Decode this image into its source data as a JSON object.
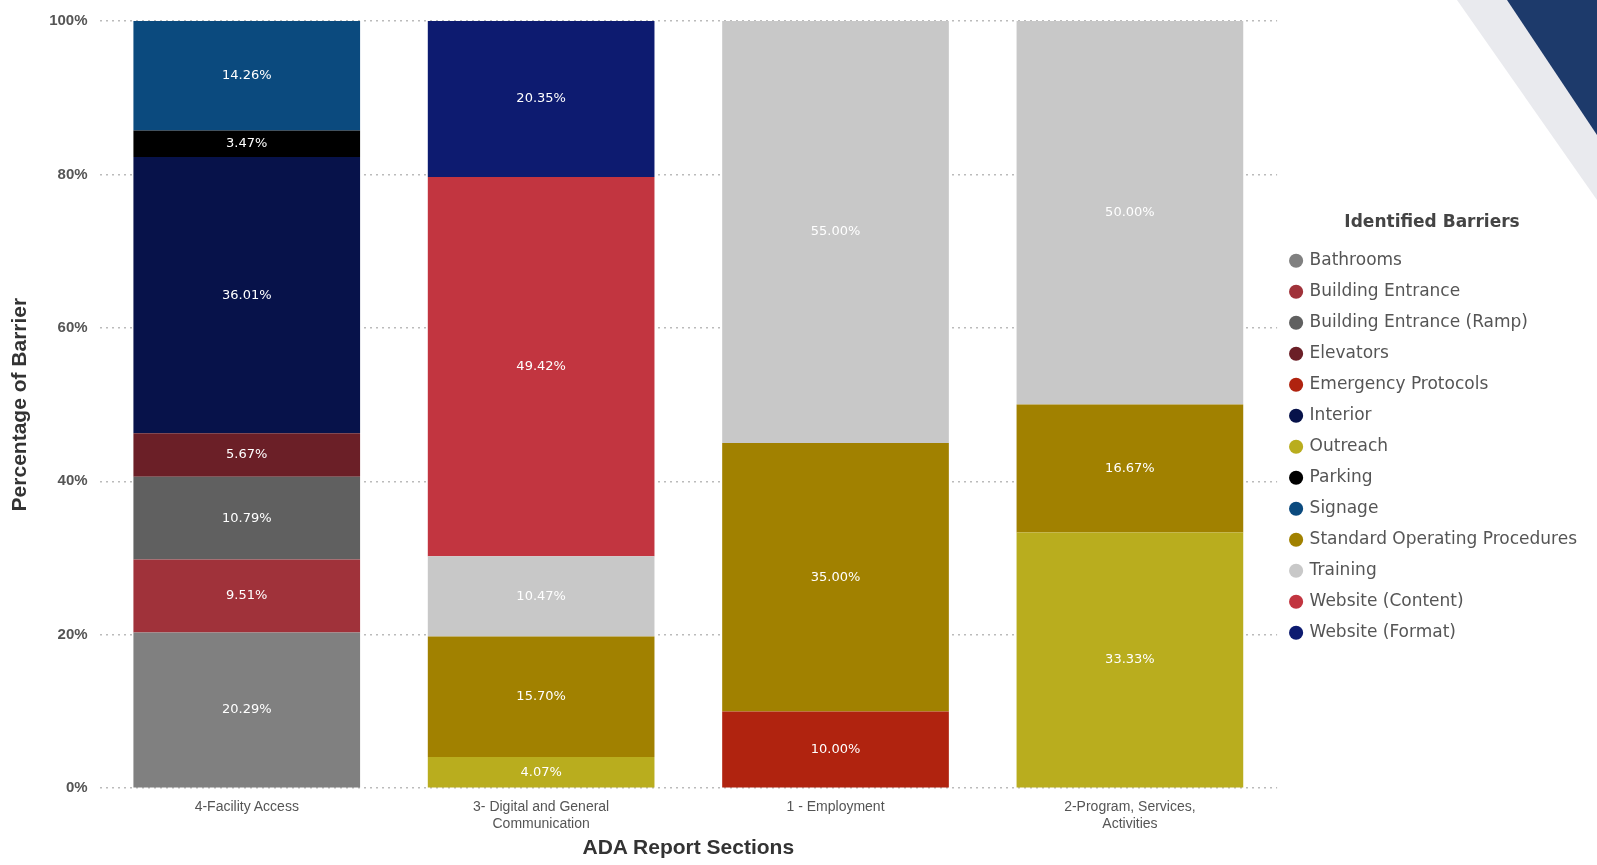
{
  "chart_data": {
    "type": "bar",
    "stacked": true,
    "xlabel": "ADA Report Sections",
    "ylabel": "Percentage of Barrier",
    "legend_title": "Identified Barriers",
    "legend": "right",
    "grid": "y",
    "categories": [
      "4-Facility Access",
      "3- Digital and General Communication",
      "1 - Employment",
      "2-Program, Services, Activities"
    ],
    "ylim": [
      0,
      100
    ],
    "yticks": [
      {
        "value": 0,
        "label": "0%"
      },
      {
        "value": 20,
        "label": "20%"
      },
      {
        "value": 40,
        "label": "40%"
      },
      {
        "value": 60,
        "label": "60%"
      },
      {
        "value": 80,
        "label": "80%"
      },
      {
        "value": 100,
        "label": "100%"
      }
    ],
    "series": [
      {
        "name": "Bathrooms",
        "color": "#808080",
        "values": [
          20.29,
          null,
          null,
          null
        ],
        "value_labels": [
          "20.29%",
          null,
          null,
          null
        ]
      },
      {
        "name": "Building Entrance",
        "color": "#a0323a",
        "values": [
          9.51,
          null,
          null,
          null
        ],
        "value_labels": [
          "9.51%",
          null,
          null,
          null
        ]
      },
      {
        "name": "Building Entrance (Ramp)",
        "color": "#606060",
        "values": [
          10.79,
          null,
          null,
          null
        ],
        "value_labels": [
          "10.79%",
          null,
          null,
          null
        ]
      },
      {
        "name": "Elevators",
        "color": "#6b1f27",
        "values": [
          5.67,
          null,
          null,
          null
        ],
        "value_labels": [
          "5.67%",
          null,
          null,
          null
        ]
      },
      {
        "name": "Emergency Protocols",
        "color": "#b0230f",
        "values": [
          null,
          null,
          10.0,
          null
        ],
        "value_labels": [
          null,
          null,
          "10.00%",
          null
        ]
      },
      {
        "name": "Interior",
        "color": "#07124a",
        "values": [
          36.01,
          null,
          null,
          null
        ],
        "value_labels": [
          "36.01%",
          null,
          null,
          null
        ]
      },
      {
        "name": "Outreach",
        "color": "#b9ad1e",
        "values": [
          null,
          4.07,
          null,
          33.33
        ],
        "value_labels": [
          null,
          "4.07%",
          null,
          "33.33%"
        ]
      },
      {
        "name": "Parking",
        "color": "#000000",
        "values": [
          3.47,
          null,
          null,
          null
        ],
        "value_labels": [
          "3.47%",
          null,
          null,
          null
        ]
      },
      {
        "name": "Signage",
        "color": "#0b4a7e",
        "values": [
          14.26,
          null,
          null,
          null
        ],
        "value_labels": [
          "14.26%",
          null,
          null,
          null
        ]
      },
      {
        "name": "Standard Operating Procedures",
        "color": "#a18100",
        "values": [
          null,
          15.7,
          35.0,
          16.67
        ],
        "value_labels": [
          null,
          "15.70%",
          "35.00%",
          "16.67%"
        ]
      },
      {
        "name": "Training",
        "color": "#c8c8c8",
        "values": [
          null,
          10.47,
          55.0,
          50.0
        ],
        "value_labels": [
          null,
          "10.47%",
          "55.00%",
          "50.00%"
        ]
      },
      {
        "name": "Website (Content)",
        "color": "#c23540",
        "values": [
          null,
          49.42,
          null,
          null
        ],
        "value_labels": [
          null,
          "49.42%",
          null,
          null
        ]
      },
      {
        "name": "Website (Format)",
        "color": "#0d1b70",
        "values": [
          null,
          20.35,
          null,
          null
        ],
        "value_labels": [
          null,
          "20.35%",
          null,
          null
        ]
      }
    ]
  }
}
